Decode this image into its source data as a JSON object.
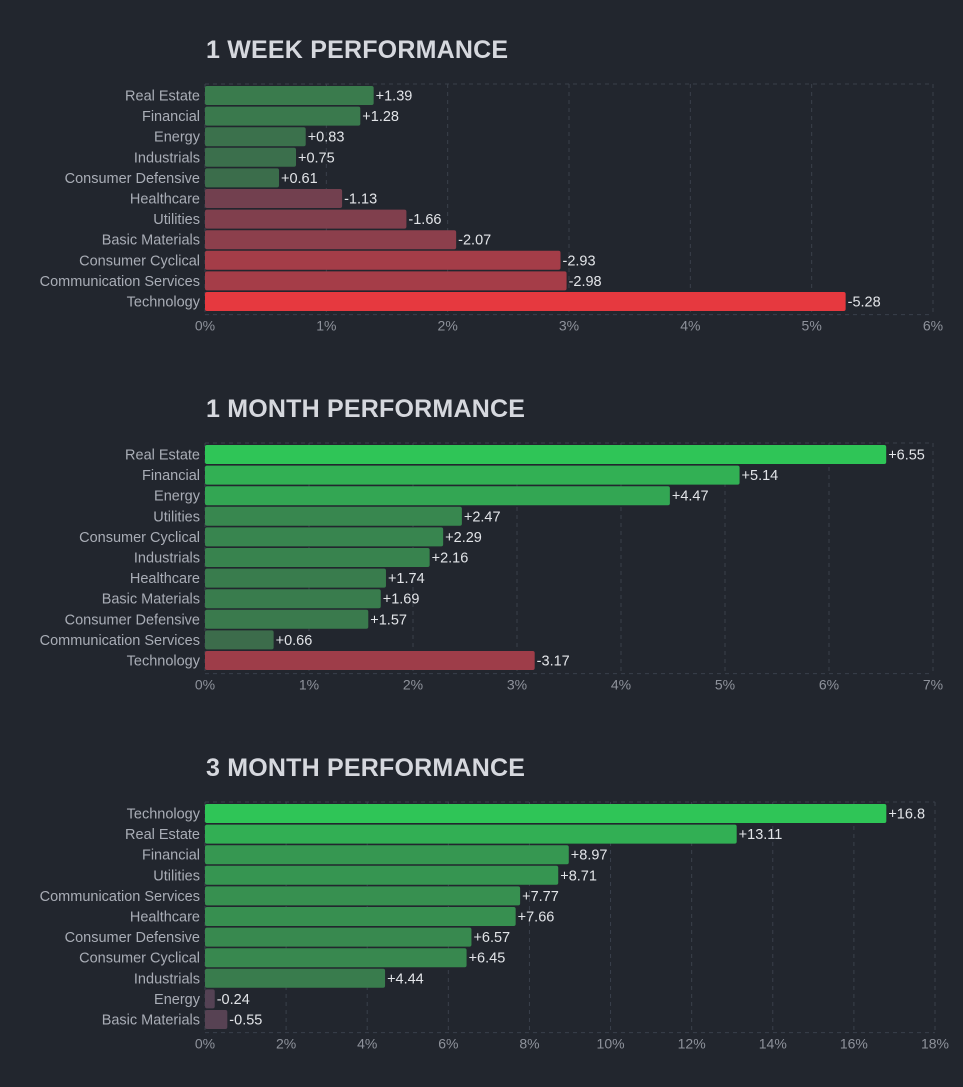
{
  "chart_data": [
    {
      "type": "bar",
      "orientation": "horizontal",
      "title": "1 WEEK PERFORMANCE",
      "categories": [
        "Real Estate",
        "Financial",
        "Energy",
        "Industrials",
        "Consumer Defensive",
        "Healthcare",
        "Utilities",
        "Basic Materials",
        "Consumer Cyclical",
        "Communication Services",
        "Technology"
      ],
      "values": [
        1.39,
        1.28,
        0.83,
        0.75,
        0.61,
        -1.13,
        -1.66,
        -2.07,
        -2.93,
        -2.98,
        -5.28
      ],
      "value_labels": [
        "+1.39",
        "+1.28",
        "+0.83",
        "+0.75",
        "+0.61",
        "-1.13",
        "-1.66",
        "-2.07",
        "-2.93",
        "-2.98",
        "-5.28"
      ],
      "xlim": [
        0,
        6
      ],
      "xticks": [
        "0%",
        "1%",
        "2%",
        "3%",
        "4%",
        "5%",
        "6%"
      ],
      "bar_value": "absolute",
      "grid": true
    },
    {
      "type": "bar",
      "orientation": "horizontal",
      "title": "1 MONTH PERFORMANCE",
      "categories": [
        "Real Estate",
        "Financial",
        "Energy",
        "Utilities",
        "Consumer Cyclical",
        "Industrials",
        "Healthcare",
        "Basic Materials",
        "Consumer Defensive",
        "Communication Services",
        "Technology"
      ],
      "values": [
        6.55,
        5.14,
        4.47,
        2.47,
        2.29,
        2.16,
        1.74,
        1.69,
        1.57,
        0.66,
        -3.17
      ],
      "value_labels": [
        "+6.55",
        "+5.14",
        "+4.47",
        "+2.47",
        "+2.29",
        "+2.16",
        "+1.74",
        "+1.69",
        "+1.57",
        "+0.66",
        "-3.17"
      ],
      "xlim": [
        0,
        7
      ],
      "xticks": [
        "0%",
        "1%",
        "2%",
        "3%",
        "4%",
        "5%",
        "6%",
        "7%"
      ],
      "bar_value": "absolute",
      "grid": true
    },
    {
      "type": "bar",
      "orientation": "horizontal",
      "title": "3 MONTH PERFORMANCE",
      "categories": [
        "Technology",
        "Real Estate",
        "Financial",
        "Utilities",
        "Communication Services",
        "Healthcare",
        "Consumer Defensive",
        "Consumer Cyclical",
        "Industrials",
        "Energy",
        "Basic Materials"
      ],
      "values": [
        16.8,
        13.11,
        8.97,
        8.71,
        7.77,
        7.66,
        6.57,
        6.45,
        4.44,
        -0.24,
        -0.55
      ],
      "value_labels": [
        "+16.8",
        "+13.11",
        "+8.97",
        "+8.71",
        "+7.77",
        "+7.66",
        "+6.57",
        "+6.45",
        "+4.44",
        "-0.24",
        "-0.55"
      ],
      "xlim": [
        0,
        18
      ],
      "xticks": [
        "0%",
        "2%",
        "4%",
        "6%",
        "8%",
        "10%",
        "12%",
        "14%",
        "16%",
        "18%"
      ],
      "bar_value": "absolute",
      "grid": true
    }
  ]
}
